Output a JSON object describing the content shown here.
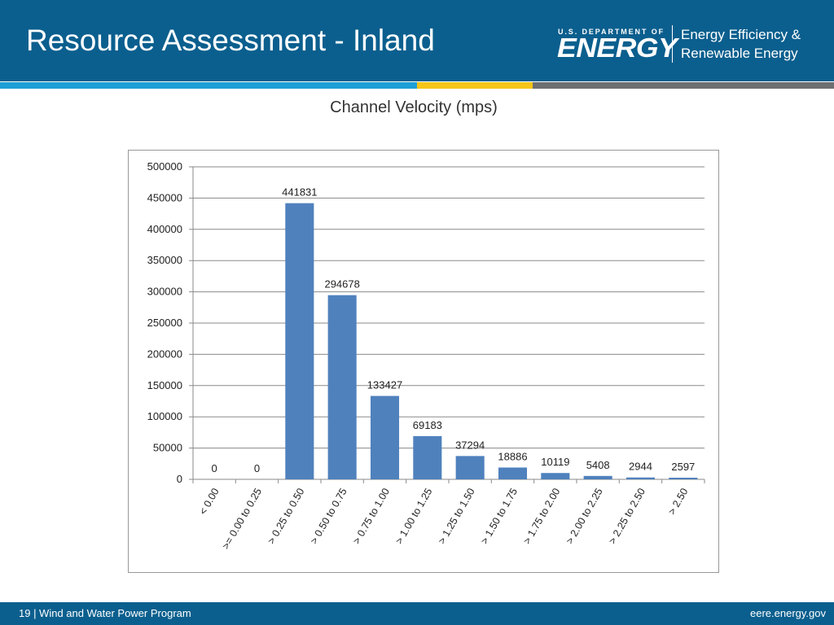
{
  "header": {
    "title": "Resource Assessment - Inland",
    "logo": {
      "small_text": "U.S. DEPARTMENT OF",
      "big_text": "ENERGY"
    },
    "office_line1": "Energy Efficiency &",
    "office_line2": "Renewable Energy"
  },
  "colors": {
    "header_blue": "#0b5f8e",
    "bar_blue": "#4f81bd",
    "stripe_cyan": "#1e9fd6",
    "stripe_yellow": "#f5c518",
    "stripe_gray": "#6d6f72"
  },
  "chart_data": {
    "type": "bar",
    "title": "Channel Velocity (mps)",
    "categories": [
      "< 0.00",
      ">= 0.00 to 0.25",
      "> 0.25 to 0.50",
      "> 0.50 to 0.75",
      "> 0.75 to 1.00",
      "> 1.00 to 1.25",
      "> 1.25 to 1.50",
      "> 1.50 to 1.75",
      "> 1.75 to 2.00",
      "> 2.00 to 2.25",
      "> 2.25 to 2.50",
      "> 2.50"
    ],
    "values": [
      0,
      0,
      441831,
      294678,
      133427,
      69183,
      37294,
      18886,
      10119,
      5408,
      2944,
      2597
    ],
    "data_labels": [
      "0",
      "0",
      "441831",
      "294678",
      "133427",
      "69183",
      "37294",
      "18886",
      "10119",
      "5408",
      "2944",
      "2597"
    ],
    "ylim": [
      0,
      500000
    ],
    "yticks": [
      "0",
      "50000",
      "100000",
      "150000",
      "200000",
      "250000",
      "300000",
      "350000",
      "400000",
      "450000",
      "500000"
    ],
    "grid": true,
    "legend": "none",
    "xlabel": "",
    "ylabel": ""
  },
  "footer": {
    "left": "19 | Wind and Water Power Program",
    "right": "eere.energy.gov"
  }
}
